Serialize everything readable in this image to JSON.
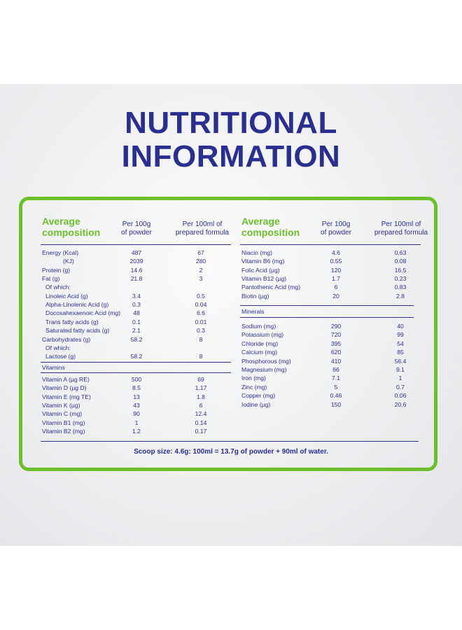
{
  "title": {
    "line1": "NUTRITIONAL",
    "line2": "INFORMATION"
  },
  "headers": {
    "avg_line1": "Average",
    "avg_line2": "composition",
    "per100g_line1": "Per 100g",
    "per100g_line2": "of powder",
    "per100ml_line1": "Per 100ml of",
    "per100ml_line2": "prepared formula"
  },
  "left": {
    "main": [
      {
        "name": "Energy (Kcal)",
        "a": "487",
        "b": "67"
      },
      {
        "name": "(KJ)",
        "a": "2039",
        "b": "280"
      },
      {
        "name": "Protein (g)",
        "a": "14.6",
        "b": "2"
      },
      {
        "name": "Fat (g)",
        "a": "21.8",
        "b": "3"
      },
      {
        "name": "Of which:",
        "a": "",
        "b": ""
      },
      {
        "name": "Linoleic Acid (g)",
        "a": "3.4",
        "b": "0.5"
      },
      {
        "name": "Alpha-Linolenic Acid (g)",
        "a": "0.3",
        "b": "0.04"
      },
      {
        "name": "Docosahexaenoic Acid (mg)",
        "a": "48",
        "b": "6.6"
      },
      {
        "name": "Trans fatty acids (g)",
        "a": "0.1",
        "b": "0.01"
      },
      {
        "name": "Saturated fatty acids (g)",
        "a": "2.1",
        "b": "0.3"
      },
      {
        "name": "Carbohydrates (g)",
        "a": "58.2",
        "b": "8"
      },
      {
        "name": "Of which:",
        "a": "",
        "b": ""
      },
      {
        "name": "Lactose (g)",
        "a": "58.2",
        "b": "8"
      }
    ],
    "vitamins_label": "Vitamins",
    "vitamins": [
      {
        "name": "Vitamin A (µg RE)",
        "a": "500",
        "b": "69"
      },
      {
        "name": "Vitamin D (µg D)",
        "a": "8.5",
        "b": "1.17"
      },
      {
        "name": "Vitamin E (mg TE)",
        "a": "13",
        "b": "1.8"
      },
      {
        "name": "Vitamin K (µg)",
        "a": "43",
        "b": "6"
      },
      {
        "name": "Vitamin C (mg)",
        "a": "90",
        "b": "12.4"
      },
      {
        "name": "Vitamin B1 (mg)",
        "a": "1",
        "b": "0.14"
      },
      {
        "name": "Vitamin B2 (mg)",
        "a": "1.2",
        "b": "0.17"
      }
    ]
  },
  "right": {
    "main": [
      {
        "name": "Niacin (mg)",
        "a": "4.6",
        "b": "0.63"
      },
      {
        "name": "Vitamin B6 (mg)",
        "a": "0.55",
        "b": "0.08"
      },
      {
        "name": "Folic Acid (µg)",
        "a": "120",
        "b": "16.5"
      },
      {
        "name": "Vitamin B12 (µg)",
        "a": "1.7",
        "b": "0.23"
      },
      {
        "name": "Pantothenic Acid (mg)",
        "a": "6",
        "b": "0.83"
      },
      {
        "name": "Biotin (µg)",
        "a": "20",
        "b": "2.8"
      }
    ],
    "minerals_label": "Minerals",
    "minerals": [
      {
        "name": "Sodium (mg)",
        "a": "290",
        "b": "40"
      },
      {
        "name": "Potassium (mg)",
        "a": "720",
        "b": "99"
      },
      {
        "name": "Chloride (mg)",
        "a": "395",
        "b": "54"
      },
      {
        "name": "Calcium (mg)",
        "a": "620",
        "b": "85"
      },
      {
        "name": "Phosphorous (mg)",
        "a": "410",
        "b": "56.4"
      },
      {
        "name": "Magnesium (mg)",
        "a": "66",
        "b": "9.1"
      },
      {
        "name": "Iron (mg)",
        "a": "7.1",
        "b": "1"
      },
      {
        "name": "Zinc (mg)",
        "a": "5",
        "b": "0.7"
      },
      {
        "name": "Copper (mg)",
        "a": "0.46",
        "b": "0.06"
      },
      {
        "name": "Iodine (µg)",
        "a": "150",
        "b": "20.6"
      }
    ]
  },
  "footer": "Scoop size: 4.6g: 100ml = 13.7g of powder + 90ml of water.",
  "colors": {
    "brand_blue": "#2a2f8f",
    "brand_green": "#6cbf2a"
  }
}
